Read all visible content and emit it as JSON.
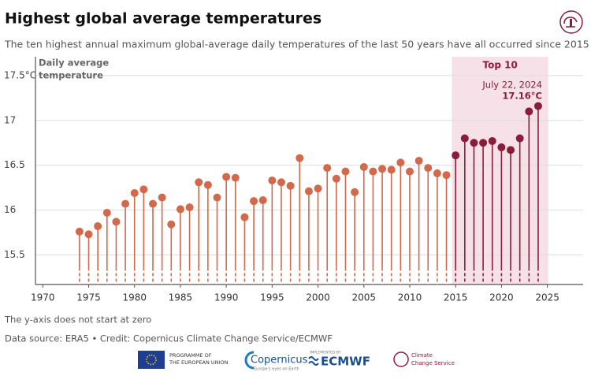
{
  "chart_data": {
    "type": "lollipop",
    "title": "Highest global average temperatures",
    "subtitle": "The ten highest annual maximum global-average daily temperatures of the last 50 years have all occurred since 2015",
    "ylabel_lines": [
      "Daily average",
      "temperature"
    ],
    "x": [
      1974,
      1975,
      1976,
      1977,
      1978,
      1979,
      1980,
      1981,
      1982,
      1983,
      1984,
      1985,
      1986,
      1987,
      1988,
      1989,
      1990,
      1991,
      1992,
      1993,
      1994,
      1995,
      1996,
      1997,
      1998,
      1999,
      2000,
      2001,
      2002,
      2003,
      2004,
      2005,
      2006,
      2007,
      2008,
      2009,
      2010,
      2011,
      2012,
      2013,
      2014,
      2015,
      2016,
      2017,
      2018,
      2019,
      2020,
      2021,
      2022,
      2023,
      2024
    ],
    "values": [
      15.76,
      15.73,
      15.82,
      15.97,
      15.87,
      16.07,
      16.19,
      16.23,
      16.07,
      16.14,
      15.84,
      16.01,
      16.03,
      16.31,
      16.28,
      16.14,
      16.37,
      16.36,
      15.92,
      16.1,
      16.11,
      16.33,
      16.31,
      16.27,
      16.58,
      16.21,
      16.24,
      16.47,
      16.35,
      16.43,
      16.2,
      16.48,
      16.43,
      16.46,
      16.45,
      16.53,
      16.43,
      16.55,
      16.47,
      16.41,
      16.39,
      16.61,
      16.8,
      16.75,
      16.75,
      16.77,
      16.7,
      16.67,
      16.8,
      17.1,
      17.16
    ],
    "color": "#d2694b",
    "highlight_color": "#8a1c3c",
    "highlight_fill": "#f5e1e7",
    "highlight_label": "Top 10",
    "highlight_xlim": [
      2014.6,
      2025.1
    ],
    "annotation": {
      "x_label": "July 22, 2024",
      "value_label": "17.16°C"
    },
    "xlim": [
      1969.2,
      2028.9
    ],
    "xticks": [
      1970,
      1975,
      1980,
      1985,
      1990,
      1995,
      2000,
      2005,
      2010,
      2015,
      2020,
      2025
    ],
    "ylim": [
      15.17,
      17.71
    ],
    "yticks": [
      {
        "value": 17.5,
        "label": "17.5°C"
      },
      17.0,
      16.5,
      16.0,
      15.5
    ],
    "grid": true
  },
  "notes": {
    "axis_note": "The y-axis does not start at zero",
    "source": "Data source: ERA5 • Credit: Copernicus Climate Change Service/ECMWF"
  },
  "logos": {
    "eu": [
      "PROGRAMME OF",
      "THE EUROPEAN UNION"
    ],
    "copernicus": "Copernicus",
    "copernicus_sub": "Europe's eyes on Earth",
    "implemented": "IMPLEMENTED BY",
    "ecmwf": "ECMWF",
    "c3s": [
      "Climate",
      "Change Service"
    ]
  }
}
